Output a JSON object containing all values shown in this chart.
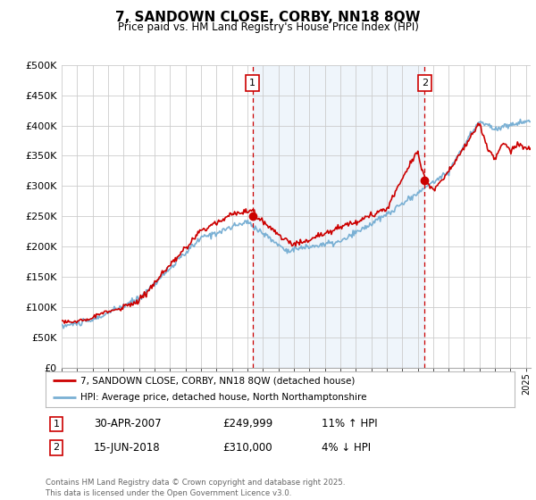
{
  "title": "7, SANDOWN CLOSE, CORBY, NN18 8QW",
  "subtitle": "Price paid vs. HM Land Registry's House Price Index (HPI)",
  "ylabel_ticks": [
    "£0",
    "£50K",
    "£100K",
    "£150K",
    "£200K",
    "£250K",
    "£300K",
    "£350K",
    "£400K",
    "£450K",
    "£500K"
  ],
  "ytick_values": [
    0,
    50000,
    100000,
    150000,
    200000,
    250000,
    300000,
    350000,
    400000,
    450000,
    500000
  ],
  "xlim_start": 1995.0,
  "xlim_end": 2025.3,
  "ylim": [
    0,
    500000
  ],
  "legend_line1": "7, SANDOWN CLOSE, CORBY, NN18 8QW (detached house)",
  "legend_line2": "HPI: Average price, detached house, North Northamptonshire",
  "purchase1_label": "1",
  "purchase1_date": "30-APR-2007",
  "purchase1_price": "£249,999",
  "purchase1_hpi": "11% ↑ HPI",
  "purchase2_label": "2",
  "purchase2_date": "15-JUN-2018",
  "purchase2_price": "£310,000",
  "purchase2_hpi": "4% ↓ HPI",
  "footer": "Contains HM Land Registry data © Crown copyright and database right 2025.\nThis data is licensed under the Open Government Licence v3.0.",
  "line_color_red": "#cc0000",
  "line_color_blue": "#7ab0d4",
  "vline_color": "#cc0000",
  "fill_color": "#ddeeff",
  "background_color": "#ffffff",
  "grid_color": "#cccccc",
  "purchase1_x": 2007.33,
  "purchase2_x": 2018.46,
  "purchase1_y": 249999,
  "purchase2_y": 310000
}
